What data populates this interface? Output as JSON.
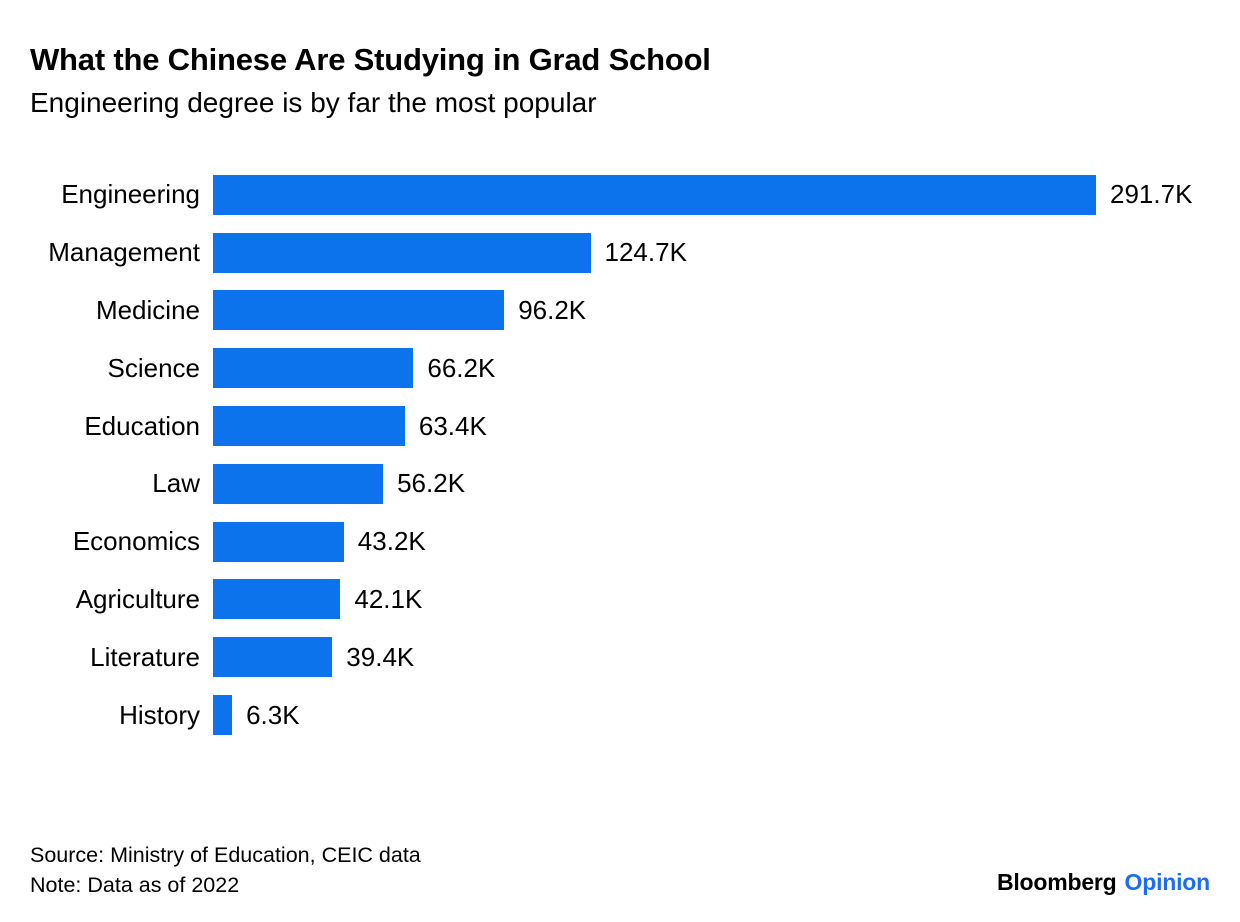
{
  "header": {
    "title": "What the Chinese Are Studying in Grad School",
    "subtitle": "Engineering degree is by far the most popular"
  },
  "chart_data": {
    "type": "bar",
    "orientation": "horizontal",
    "title": "What the Chinese Are Studying in Grad School",
    "subtitle": "Engineering degree is by far the most popular",
    "categories": [
      "Engineering",
      "Management",
      "Medicine",
      "Science",
      "Education",
      "Law",
      "Economics",
      "Agriculture",
      "Literature",
      "History"
    ],
    "values": [
      291.7,
      124.7,
      96.2,
      66.2,
      63.4,
      56.2,
      43.2,
      42.1,
      39.4,
      6.3
    ],
    "value_labels": [
      "291.7K",
      "124.7K",
      "96.2K",
      "66.2K",
      "63.4K",
      "56.2K",
      "43.2K",
      "42.1K",
      "39.4K",
      "6.3K"
    ],
    "unit": "K",
    "xlim": [
      0,
      291.7
    ],
    "grid": false,
    "legend": false,
    "bar_color": "#0d73ec"
  },
  "footer": {
    "source": "Source: Ministry of Education, CEIC data",
    "note": "Note: Data as of 2022"
  },
  "brand": {
    "name": "Bloomberg",
    "suffix": "Opinion",
    "suffix_color": "#1b6ef3"
  }
}
